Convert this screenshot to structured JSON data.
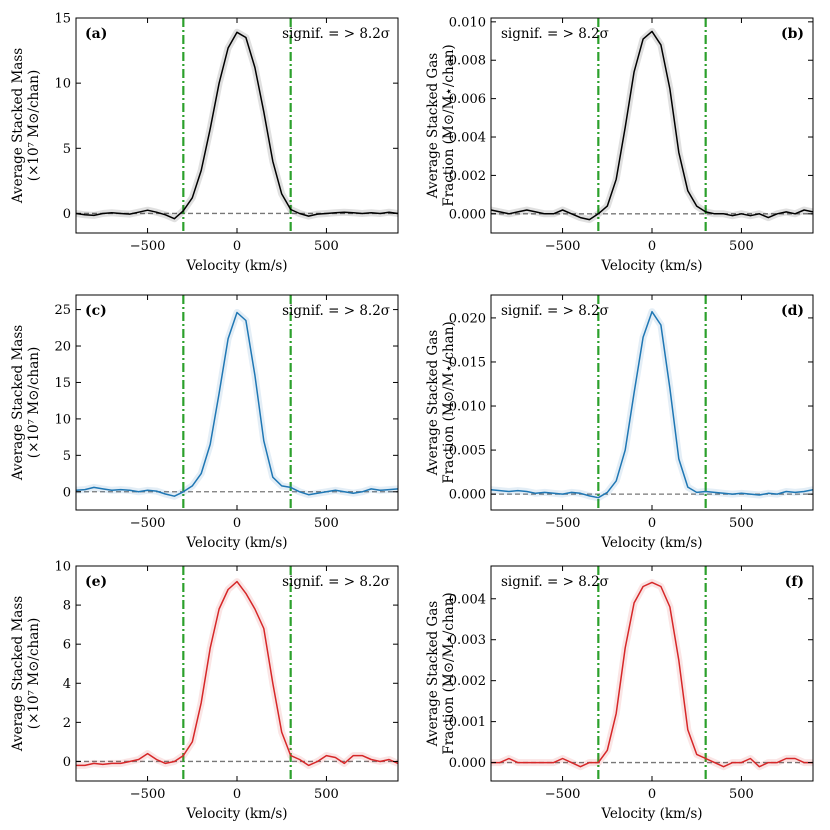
{
  "figure": {
    "xlabel": "Velocity (km/s)",
    "colors": {
      "vlines": "#2ca02c",
      "zero_line": "#777777"
    }
  },
  "chart_data": [
    {
      "type": "line",
      "panel": "(a)",
      "annotation": "signif. = > 8.2σ",
      "annotation_pos": "top-right",
      "ylabel_lines": [
        "Average Stacked Mass",
        "(×10⁷ M⊙/chan)"
      ],
      "xlim": [
        -900,
        900
      ],
      "ylim": [
        -1.5,
        15
      ],
      "xticks": [
        -500,
        0,
        500
      ],
      "yticks": [
        0,
        5,
        10,
        15
      ],
      "xtick_labels": [
        "−500",
        "0",
        "500"
      ],
      "ytick_labels": [
        "0",
        "5",
        "10",
        "15"
      ],
      "color": "#000000",
      "vlines": [
        -300,
        300
      ],
      "series": [
        {
          "name": "stack",
          "x": [
            -900,
            -850,
            -800,
            -750,
            -700,
            -650,
            -600,
            -550,
            -500,
            -450,
            -400,
            -350,
            -300,
            -250,
            -200,
            -150,
            -100,
            -50,
            0,
            50,
            100,
            150,
            200,
            250,
            300,
            350,
            400,
            450,
            500,
            550,
            600,
            650,
            700,
            750,
            800,
            850,
            900
          ],
          "y": [
            0.0,
            -0.1,
            -0.15,
            0.0,
            0.05,
            0.0,
            -0.05,
            0.1,
            0.25,
            0.1,
            -0.1,
            -0.4,
            0.2,
            1.2,
            3.3,
            6.5,
            10.0,
            12.7,
            13.9,
            13.5,
            11.2,
            7.8,
            4.0,
            1.5,
            0.3,
            0.0,
            -0.2,
            -0.05,
            0.0,
            0.05,
            0.1,
            0.05,
            0.0,
            0.05,
            0.0,
            0.1,
            0.0
          ]
        }
      ]
    },
    {
      "type": "line",
      "panel": "(b)",
      "annotation": "signif. = > 8.2σ",
      "annotation_pos": "top-left",
      "ylabel_lines": [
        "Average Stacked Gas",
        "Fraction (M⊙/M⋆/chan)"
      ],
      "xlim": [
        -900,
        900
      ],
      "ylim": [
        -0.001,
        0.0102
      ],
      "xticks": [
        -500,
        0,
        500
      ],
      "yticks": [
        0.0,
        0.002,
        0.004,
        0.006,
        0.008,
        0.01
      ],
      "xtick_labels": [
        "−500",
        "0",
        "500"
      ],
      "ytick_labels": [
        "0.000",
        "0.002",
        "0.004",
        "0.006",
        "0.008",
        "0.010"
      ],
      "color": "#000000",
      "vlines": [
        -300,
        300
      ],
      "series": [
        {
          "name": "stack",
          "x": [
            -900,
            -850,
            -800,
            -750,
            -700,
            -650,
            -600,
            -550,
            -500,
            -450,
            -400,
            -350,
            -300,
            -250,
            -200,
            -150,
            -100,
            -50,
            0,
            50,
            100,
            150,
            200,
            250,
            300,
            350,
            400,
            450,
            500,
            550,
            600,
            650,
            700,
            750,
            800,
            850,
            900
          ],
          "y": [
            0.0002,
            0.0001,
            0.0,
            0.0001,
            0.0002,
            0.0001,
            0.0,
            0.0,
            0.0002,
            0.0,
            -0.0002,
            -0.0003,
            0.0,
            0.0004,
            0.0018,
            0.0045,
            0.0074,
            0.0091,
            0.0095,
            0.0088,
            0.0065,
            0.0032,
            0.0012,
            0.0004,
            0.0001,
            0.0,
            0.0,
            -0.0001,
            0.0,
            -0.0001,
            0.0,
            -0.0002,
            0.0,
            0.0001,
            0.0,
            0.0002,
            0.0001
          ]
        }
      ]
    },
    {
      "type": "line",
      "panel": "(c)",
      "annotation": "signif. = > 8.2σ",
      "annotation_pos": "top-right",
      "ylabel_lines": [
        "Average Stacked Mass",
        "(×10⁷ M⊙/chan)"
      ],
      "xlim": [
        -900,
        900
      ],
      "ylim": [
        -2.5,
        27
      ],
      "xticks": [
        -500,
        0,
        500
      ],
      "yticks": [
        0,
        5,
        10,
        15,
        20,
        25
      ],
      "xtick_labels": [
        "−500",
        "0",
        "500"
      ],
      "ytick_labels": [
        "0",
        "5",
        "10",
        "15",
        "20",
        "25"
      ],
      "color": "#1f77b4",
      "vlines": [
        -300,
        300
      ],
      "series": [
        {
          "name": "stack",
          "x": [
            -900,
            -850,
            -800,
            -750,
            -700,
            -650,
            -600,
            -550,
            -500,
            -450,
            -400,
            -350,
            -300,
            -250,
            -200,
            -150,
            -100,
            -50,
            0,
            50,
            100,
            150,
            200,
            250,
            300,
            350,
            400,
            450,
            500,
            550,
            600,
            650,
            700,
            750,
            800,
            850,
            900
          ],
          "y": [
            0.2,
            0.3,
            0.6,
            0.4,
            0.2,
            0.3,
            0.2,
            0.0,
            0.2,
            0.1,
            -0.3,
            -0.6,
            0.0,
            0.8,
            2.5,
            6.5,
            13.5,
            21.0,
            24.6,
            23.5,
            16.0,
            7.0,
            2.0,
            0.8,
            0.6,
            0.0,
            -0.4,
            -0.2,
            0.0,
            0.2,
            0.0,
            -0.2,
            0.0,
            0.4,
            0.2,
            0.3,
            0.4
          ]
        }
      ]
    },
    {
      "type": "line",
      "panel": "(d)",
      "annotation": "signif. = > 8.2σ",
      "annotation_pos": "top-left",
      "ylabel_lines": [
        "Average Stacked Gas",
        "Fraction (M⊙/M⋆/chan)"
      ],
      "xlim": [
        -900,
        900
      ],
      "ylim": [
        -0.0018,
        0.0226
      ],
      "xticks": [
        -500,
        0,
        500
      ],
      "yticks": [
        0.0,
        0.005,
        0.01,
        0.015,
        0.02
      ],
      "xtick_labels": [
        "−500",
        "0",
        "500"
      ],
      "ytick_labels": [
        "0.000",
        "0.005",
        "0.010",
        "0.015",
        "0.020"
      ],
      "color": "#1f77b4",
      "vlines": [
        -300,
        300
      ],
      "series": [
        {
          "name": "stack",
          "x": [
            -900,
            -850,
            -800,
            -750,
            -700,
            -650,
            -600,
            -550,
            -500,
            -450,
            -400,
            -350,
            -300,
            -250,
            -200,
            -150,
            -100,
            -50,
            0,
            50,
            100,
            150,
            200,
            250,
            300,
            350,
            400,
            450,
            500,
            550,
            600,
            650,
            700,
            750,
            800,
            850,
            900
          ],
          "y": [
            0.0005,
            0.0004,
            0.0003,
            0.0004,
            0.0003,
            0.0001,
            0.0002,
            0.0001,
            0.0,
            0.0002,
            0.0001,
            -0.0002,
            -0.0004,
            0.0002,
            0.0015,
            0.005,
            0.0115,
            0.0178,
            0.0207,
            0.0192,
            0.012,
            0.004,
            0.0008,
            0.0002,
            0.0003,
            0.0002,
            0.0001,
            0.0,
            0.0001,
            0.0,
            -0.0001,
            0.0001,
            0.0,
            0.0003,
            0.0002,
            0.0003,
            0.0005
          ]
        }
      ]
    },
    {
      "type": "line",
      "panel": "(e)",
      "annotation": "signif. = > 8.2σ",
      "annotation_pos": "top-right",
      "ylabel_lines": [
        "Average Stacked Mass",
        "(×10⁷ M⊙/chan)"
      ],
      "xlim": [
        -900,
        900
      ],
      "ylim": [
        -1.0,
        10.0
      ],
      "xticks": [
        -500,
        0,
        500
      ],
      "yticks": [
        0,
        2,
        4,
        6,
        8,
        10
      ],
      "xtick_labels": [
        "−500",
        "0",
        "500"
      ],
      "ytick_labels": [
        "0",
        "2",
        "4",
        "6",
        "8",
        "10"
      ],
      "color": "#d62728",
      "vlines": [
        -300,
        300
      ],
      "series": [
        {
          "name": "stack",
          "x": [
            -900,
            -850,
            -800,
            -750,
            -700,
            -650,
            -600,
            -550,
            -500,
            -450,
            -400,
            -350,
            -300,
            -250,
            -200,
            -150,
            -100,
            -50,
            0,
            50,
            100,
            150,
            200,
            250,
            300,
            350,
            400,
            450,
            500,
            550,
            600,
            650,
            700,
            750,
            800,
            850,
            900
          ],
          "y": [
            -0.2,
            -0.2,
            -0.1,
            -0.15,
            -0.1,
            -0.1,
            0.0,
            0.1,
            0.4,
            0.1,
            -0.1,
            0.0,
            0.3,
            1.0,
            3.0,
            5.8,
            7.8,
            8.8,
            9.2,
            8.6,
            7.8,
            6.8,
            4.0,
            1.5,
            0.3,
            0.1,
            -0.2,
            0.0,
            0.3,
            0.2,
            -0.1,
            0.3,
            0.3,
            0.1,
            0.0,
            0.1,
            -0.1
          ]
        }
      ]
    },
    {
      "type": "line",
      "panel": "(f)",
      "annotation": "signif. = > 8.2σ",
      "annotation_pos": "top-left",
      "ylabel_lines": [
        "Average Stacked Gas",
        "Fraction (M⊙/M⋆/chan)"
      ],
      "xlim": [
        -900,
        900
      ],
      "ylim": [
        -0.00045,
        0.0048
      ],
      "xticks": [
        -500,
        0,
        500
      ],
      "yticks": [
        0.0,
        0.001,
        0.002,
        0.003,
        0.004
      ],
      "xtick_labels": [
        "−500",
        "0",
        "500"
      ],
      "ytick_labels": [
        "0.000",
        "0.001",
        "0.002",
        "0.003",
        "0.004"
      ],
      "color": "#d62728",
      "vlines": [
        -300,
        300
      ],
      "series": [
        {
          "name": "stack",
          "x": [
            -900,
            -850,
            -800,
            -750,
            -700,
            -650,
            -600,
            -550,
            -500,
            -450,
            -400,
            -350,
            -300,
            -250,
            -200,
            -150,
            -100,
            -50,
            0,
            50,
            100,
            150,
            200,
            250,
            300,
            350,
            400,
            450,
            500,
            550,
            600,
            650,
            700,
            750,
            800,
            850,
            900
          ],
          "y": [
            0.0,
            0.0,
            0.0001,
            0.0,
            0.0,
            0.0,
            0.0,
            0.0,
            0.0001,
            0.0,
            -0.0001,
            0.0,
            0.0,
            0.0003,
            0.0012,
            0.0028,
            0.0039,
            0.0043,
            0.0044,
            0.0043,
            0.0038,
            0.0025,
            0.0008,
            0.0002,
            0.0001,
            0.0,
            -0.0001,
            0.0,
            0.0,
            0.0001,
            -0.0001,
            0.0,
            0.0,
            0.0001,
            0.0001,
            0.0,
            0.0
          ]
        }
      ]
    }
  ]
}
